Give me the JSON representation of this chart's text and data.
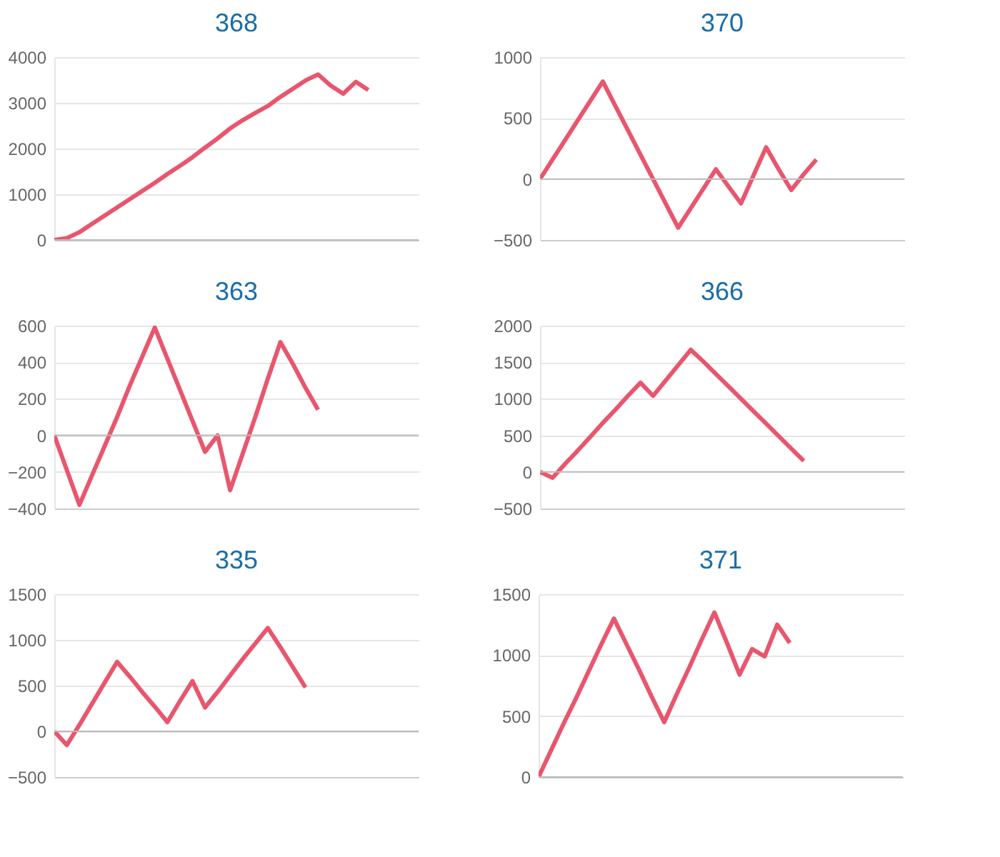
{
  "chart_data": [
    {
      "type": "line",
      "title": "368",
      "categories": [
        null,
        null,
        null,
        null,
        null,
        null,
        null,
        null,
        null,
        null,
        null,
        null,
        null,
        null,
        null,
        null,
        null,
        null,
        null,
        null,
        null,
        null,
        null,
        null,
        null,
        null,
        null,
        null,
        null,
        null
      ],
      "series": [
        {
          "color": "#e8566e",
          "values": [
            0,
            40,
            170,
            350,
            530,
            710,
            890,
            1070,
            1250,
            1440,
            1620,
            1810,
            2020,
            2220,
            2440,
            2620,
            2780,
            2930,
            3130,
            3310,
            3490,
            3620,
            3380,
            3200,
            3460,
            3280,
            null,
            null,
            null,
            null
          ]
        }
      ],
      "ylim": [
        0,
        4000
      ],
      "yticks": [
        0,
        1000,
        2000,
        3000,
        4000
      ],
      "grid": "y",
      "tick_labels": "y",
      "ref_lines": [
        {
          "axis": "y",
          "value": 0,
          "color": "#bbbbbb"
        }
      ]
    },
    {
      "type": "line",
      "title": "370",
      "categories": [
        null,
        null,
        null,
        null,
        null,
        null,
        null,
        null,
        null,
        null,
        null,
        null,
        null,
        null,
        null,
        null,
        null,
        null,
        null,
        null,
        null,
        null,
        null,
        null,
        null,
        null,
        null,
        null,
        null,
        null
      ],
      "series": [
        {
          "color": "#e8566e",
          "values": [
            0,
            160,
            320,
            480,
            640,
            800,
            600,
            400,
            200,
            0,
            -200,
            -400,
            -240,
            -80,
            80,
            -60,
            -200,
            30,
            260,
            80,
            -90,
            40,
            160,
            null,
            null,
            null,
            null,
            null,
            null,
            null
          ]
        }
      ],
      "ylim": [
        -500,
        1000
      ],
      "yticks": [
        -500,
        0,
        500,
        1000
      ],
      "grid": "y",
      "tick_labels": "y",
      "ref_lines": [
        {
          "axis": "y",
          "value": 0,
          "color": "#bbbbbb"
        }
      ]
    },
    {
      "type": "line",
      "title": "363",
      "categories": [
        null,
        null,
        null,
        null,
        null,
        null,
        null,
        null,
        null,
        null,
        null,
        null,
        null,
        null,
        null,
        null,
        null,
        null,
        null,
        null,
        null,
        null,
        null,
        null,
        null,
        null,
        null,
        null,
        null,
        null
      ],
      "series": [
        {
          "color": "#e8566e",
          "values": [
            0,
            -190,
            -380,
            -220,
            -60,
            100,
            270,
            430,
            590,
            420,
            250,
            80,
            -90,
            0,
            -300,
            -100,
            100,
            310,
            510,
            390,
            260,
            140,
            null,
            null,
            null,
            null,
            null,
            null,
            null,
            null
          ]
        }
      ],
      "ylim": [
        -400,
        600
      ],
      "yticks": [
        -400,
        -200,
        0,
        200,
        400,
        600
      ],
      "grid": "y",
      "tick_labels": "y",
      "ref_lines": [
        {
          "axis": "y",
          "value": 0,
          "color": "#bbbbbb"
        }
      ]
    },
    {
      "type": "line",
      "title": "366",
      "categories": [
        null,
        null,
        null,
        null,
        null,
        null,
        null,
        null,
        null,
        null,
        null,
        null,
        null,
        null,
        null,
        null,
        null,
        null,
        null,
        null,
        null,
        null,
        null,
        null,
        null,
        null,
        null,
        null,
        null,
        null
      ],
      "series": [
        {
          "color": "#e8566e",
          "values": [
            0,
            -80,
            110,
            290,
            480,
            670,
            850,
            1040,
            1220,
            1040,
            1250,
            1460,
            1670,
            1510,
            1340,
            1170,
            1000,
            830,
            660,
            490,
            320,
            150,
            null,
            null,
            null,
            null,
            null,
            null,
            null,
            null
          ]
        }
      ],
      "ylim": [
        -500,
        2000
      ],
      "yticks": [
        -500,
        0,
        500,
        1000,
        1500,
        2000
      ],
      "grid": "y",
      "tick_labels": "y",
      "ref_lines": [
        {
          "axis": "y",
          "value": 0,
          "color": "#bbbbbb"
        }
      ]
    },
    {
      "type": "line",
      "title": "335",
      "categories": [
        null,
        null,
        null,
        null,
        null,
        null,
        null,
        null,
        null,
        null,
        null,
        null,
        null,
        null,
        null,
        null,
        null,
        null,
        null,
        null,
        null,
        null,
        null,
        null,
        null,
        null,
        null,
        null,
        null,
        null
      ],
      "series": [
        {
          "color": "#e8566e",
          "values": [
            0,
            -150,
            70,
            300,
            530,
            760,
            600,
            430,
            270,
            100,
            330,
            550,
            260,
            430,
            610,
            790,
            960,
            1130,
            920,
            700,
            480,
            null,
            null,
            null,
            null,
            null,
            null,
            null,
            null,
            null
          ]
        }
      ],
      "ylim": [
        -500,
        1500
      ],
      "yticks": [
        -500,
        0,
        500,
        1000,
        1500
      ],
      "grid": "y",
      "tick_labels": "y",
      "ref_lines": [
        {
          "axis": "y",
          "value": 0,
          "color": "#bbbbbb"
        }
      ]
    },
    {
      "type": "line",
      "title": "371",
      "categories": [
        null,
        null,
        null,
        null,
        null,
        null,
        null,
        null,
        null,
        null,
        null,
        null,
        null,
        null,
        null,
        null,
        null,
        null,
        null,
        null,
        null,
        null,
        null,
        null,
        null,
        null,
        null,
        null,
        null,
        null
      ],
      "series": [
        {
          "color": "#e8566e",
          "values": [
            0,
            220,
            440,
            650,
            870,
            1090,
            1300,
            1090,
            880,
            660,
            450,
            680,
            900,
            1130,
            1350,
            1100,
            840,
            1050,
            990,
            1250,
            1100,
            null,
            null,
            null,
            null,
            null,
            null,
            null,
            null,
            null
          ]
        }
      ],
      "ylim": [
        0,
        1500
      ],
      "yticks": [
        0,
        500,
        1000,
        1500
      ],
      "grid": "y",
      "tick_labels": "y",
      "ref_lines": [
        {
          "axis": "y",
          "value": 0,
          "color": "#bbbbbb"
        }
      ]
    }
  ]
}
